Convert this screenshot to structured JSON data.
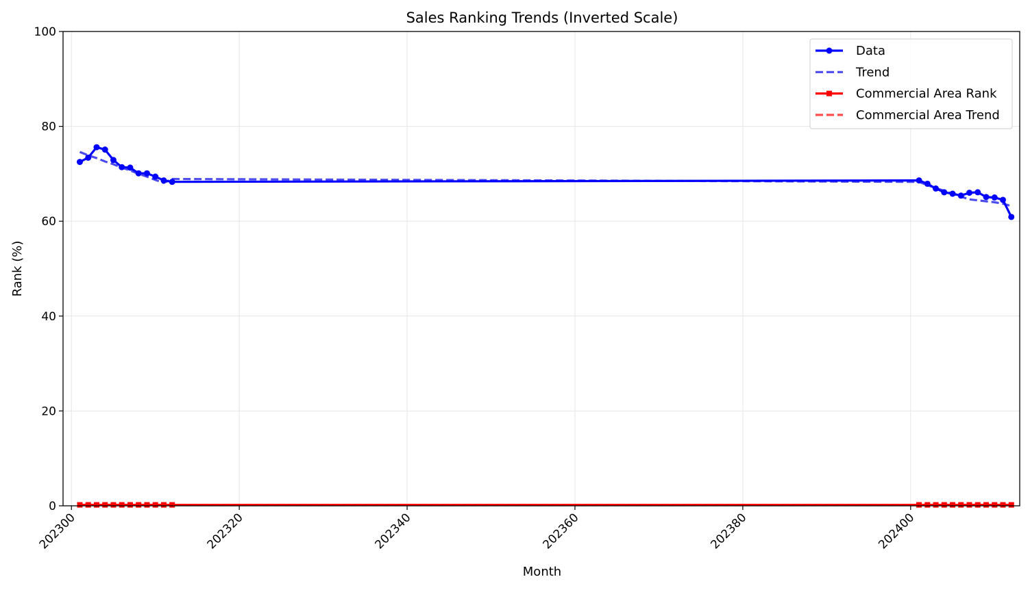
{
  "chart_data": {
    "type": "line",
    "title": "Sales Ranking Trends (Inverted Scale)",
    "xlabel": "Month",
    "ylabel": "Rank (%)",
    "xlim": [
      202299,
      202413
    ],
    "ylim": [
      0,
      100
    ],
    "xticks": [
      202300,
      202320,
      202340,
      202360,
      202380,
      202400
    ],
    "yticks": [
      0,
      20,
      40,
      60,
      80,
      100
    ],
    "grid": true,
    "legend_position": "top-right",
    "colors": {
      "data": "#0000ff",
      "trend": "#4b4bf0",
      "area_rank": "#ff0000",
      "area_trend": "#ff4d4d"
    },
    "series": [
      {
        "name": "Data",
        "style": "solid-with-circle-markers",
        "x": [
          202301,
          202302,
          202303,
          202304,
          202305,
          202306,
          202307,
          202308,
          202309,
          202310,
          202311,
          202312,
          202401,
          202402,
          202403,
          202404,
          202405,
          202406,
          202407,
          202408,
          202409,
          202410,
          202411,
          202412
        ],
        "values": [
          72.5,
          73.4,
          75.6,
          75.1,
          72.9,
          71.4,
          71.3,
          70.1,
          70.1,
          69.4,
          68.6,
          68.3,
          68.6,
          67.9,
          66.9,
          66.1,
          65.8,
          65.4,
          66.0,
          66.1,
          65.1,
          65.0,
          64.5,
          60.9
        ]
      },
      {
        "name": "Trend",
        "style": "dashed",
        "x": [
          202301,
          202302,
          202303,
          202304,
          202305,
          202306,
          202307,
          202308,
          202309,
          202310,
          202311,
          202312,
          202401,
          202402,
          202403,
          202404,
          202405,
          202406,
          202407,
          202408,
          202409,
          202410,
          202411,
          202412
        ],
        "values": [
          74.6,
          73.9,
          73.3,
          72.6,
          72.0,
          71.3,
          70.7,
          70.0,
          69.4,
          68.7,
          68.1,
          68.9,
          68.3,
          67.6,
          67.0,
          66.4,
          65.8,
          65.2,
          64.6,
          64.4,
          64.2,
          64.0,
          63.7,
          63.2
        ]
      },
      {
        "name": "Commercial Area Rank",
        "style": "solid-with-square-markers",
        "x": [
          202301,
          202302,
          202303,
          202304,
          202305,
          202306,
          202307,
          202308,
          202309,
          202310,
          202311,
          202312,
          202401,
          202402,
          202403,
          202404,
          202405,
          202406,
          202407,
          202408,
          202409,
          202410,
          202411,
          202412
        ],
        "values": [
          0.2,
          0.2,
          0.2,
          0.2,
          0.2,
          0.2,
          0.2,
          0.2,
          0.2,
          0.2,
          0.2,
          0.2,
          0.2,
          0.2,
          0.2,
          0.2,
          0.2,
          0.2,
          0.2,
          0.2,
          0.2,
          0.2,
          0.2,
          0.2
        ]
      },
      {
        "name": "Commercial Area Trend",
        "style": "dashed",
        "x": [
          202301,
          202412
        ],
        "values": [
          0.2,
          0.2
        ]
      }
    ]
  }
}
